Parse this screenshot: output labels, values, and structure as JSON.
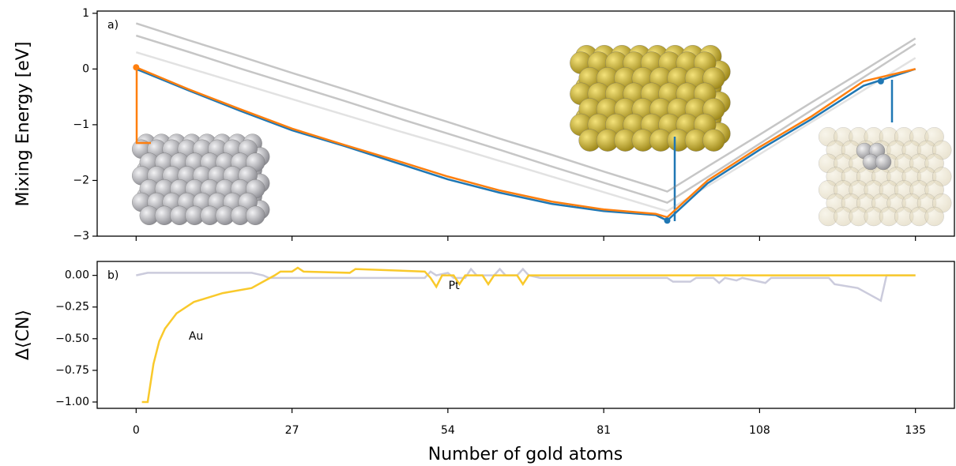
{
  "chart_data": [
    {
      "type": "line",
      "panel_label": "a)",
      "y_label": "Mixing Energy [eV]",
      "x": [
        0,
        9,
        18,
        27,
        36,
        45,
        54,
        63,
        72,
        81,
        90,
        92,
        99,
        108,
        117,
        126,
        135
      ],
      "xlim": [
        -6.75,
        141.75
      ],
      "xticks": [
        0,
        27,
        54,
        81,
        108,
        135
      ],
      "ylim": [
        -3,
        1.04
      ],
      "yticks": [
        {
          "value": -3,
          "label": "−3"
        },
        {
          "value": -2,
          "label": "−2"
        },
        {
          "value": -1,
          "label": "−1"
        },
        0,
        1
      ],
      "series": [
        {
          "color": "#808080",
          "opacity": 0.45,
          "values": [
            0.82,
            0.52,
            0.23,
            -0.07,
            -0.36,
            -0.66,
            -0.95,
            -1.25,
            -1.54,
            -1.84,
            -2.13,
            -2.2,
            -1.75,
            -1.18,
            -0.6,
            -0.03,
            0.55
          ]
        },
        {
          "color": "#808080",
          "opacity": 0.45,
          "values": [
            0.6,
            0.31,
            0.01,
            -0.28,
            -0.57,
            -0.87,
            -1.16,
            -1.45,
            -1.75,
            -2.04,
            -2.33,
            -2.4,
            -1.94,
            -1.34,
            -0.74,
            -0.15,
            0.45
          ]
        },
        {
          "color": "#a0a0a0",
          "opacity": 0.3,
          "values": [
            0.3,
            0.02,
            -0.26,
            -0.54,
            -0.82,
            -1.1,
            -1.37,
            -1.65,
            -1.93,
            -2.21,
            -2.49,
            -2.55,
            -2.1,
            -1.53,
            -0.95,
            -0.38,
            0.2
          ]
        },
        {
          "color": "#1f77b4",
          "opacity": 1,
          "values": [
            0,
            -0.38,
            -0.75,
            -1.1,
            -1.38,
            -1.68,
            -1.98,
            -2.22,
            -2.42,
            -2.55,
            -2.62,
            -2.72,
            -2.05,
            -1.45,
            -0.9,
            -0.3,
            0
          ]
        },
        {
          "color": "#ff7f0e",
          "opacity": 1,
          "values": [
            0.03,
            -0.36,
            -0.72,
            -1.07,
            -1.36,
            -1.64,
            -1.93,
            -2.18,
            -2.38,
            -2.52,
            -2.6,
            -2.66,
            -2.0,
            -1.4,
            -0.85,
            -0.22,
            0
          ]
        }
      ],
      "markers": [
        {
          "x": 0,
          "y": 0.03,
          "color": "#ff7f0e"
        },
        {
          "x": 92,
          "y": -2.72,
          "color": "#1f77b4"
        },
        {
          "x": 129,
          "y": -0.22,
          "color": "#1f77b4"
        }
      ]
    },
    {
      "type": "line",
      "panel_label": "b)",
      "y_label": "Δ⟨CN⟩",
      "x_label": "Number of gold atoms",
      "xlim": [
        -6.75,
        141.75
      ],
      "xticks": [
        0,
        27,
        54,
        81,
        108,
        135
      ],
      "ylim": [
        -1.05,
        0.11
      ],
      "yticks": [
        {
          "value": -1,
          "label": "−1.00"
        },
        {
          "value": -0.75,
          "label": "−0.75"
        },
        {
          "value": -0.5,
          "label": "−0.50"
        },
        {
          "value": -0.25,
          "label": "−0.25"
        },
        {
          "value": 0,
          "label": "0.00"
        }
      ],
      "series": [
        {
          "color": "#cbcbdc",
          "label": "Pt",
          "x": [
            0,
            2,
            20,
            22,
            23,
            50,
            51,
            52,
            54,
            55,
            57,
            58,
            59,
            62,
            63,
            64,
            66,
            67,
            68,
            70,
            92,
            93,
            96,
            97,
            100,
            101,
            102,
            104,
            105,
            109,
            110,
            120,
            121,
            125,
            127,
            129,
            130,
            135
          ],
          "values": [
            0,
            0.02,
            0.02,
            0,
            -0.02,
            -0.02,
            0.03,
            0,
            0.02,
            -0.02,
            -0.02,
            0.05,
            0,
            0,
            0.05,
            0,
            0,
            0.05,
            0,
            -0.02,
            -0.02,
            -0.05,
            -0.05,
            -0.02,
            -0.02,
            -0.06,
            -0.02,
            -0.04,
            -0.02,
            -0.06,
            -0.02,
            -0.02,
            -0.07,
            -0.1,
            -0.15,
            -0.2,
            0,
            0
          ]
        },
        {
          "color": "#f9c92b",
          "label": "Au",
          "x": [
            1,
            2,
            3,
            4,
            5,
            7,
            10,
            15,
            20,
            22,
            24,
            25,
            27,
            28,
            29,
            37,
            38,
            50,
            51,
            52,
            53,
            55,
            56,
            57,
            60,
            61,
            62,
            66,
            67,
            68,
            70,
            135
          ],
          "values": [
            -1,
            -1,
            -0.7,
            -0.52,
            -0.42,
            -0.3,
            -0.21,
            -0.14,
            -0.1,
            -0.05,
            0,
            0.03,
            0.03,
            0.06,
            0.03,
            0.02,
            0.05,
            0.03,
            -0.02,
            -0.09,
            0,
            0,
            -0.07,
            0,
            0,
            -0.07,
            0,
            0,
            -0.07,
            0,
            0,
            0
          ]
        }
      ]
    }
  ]
}
